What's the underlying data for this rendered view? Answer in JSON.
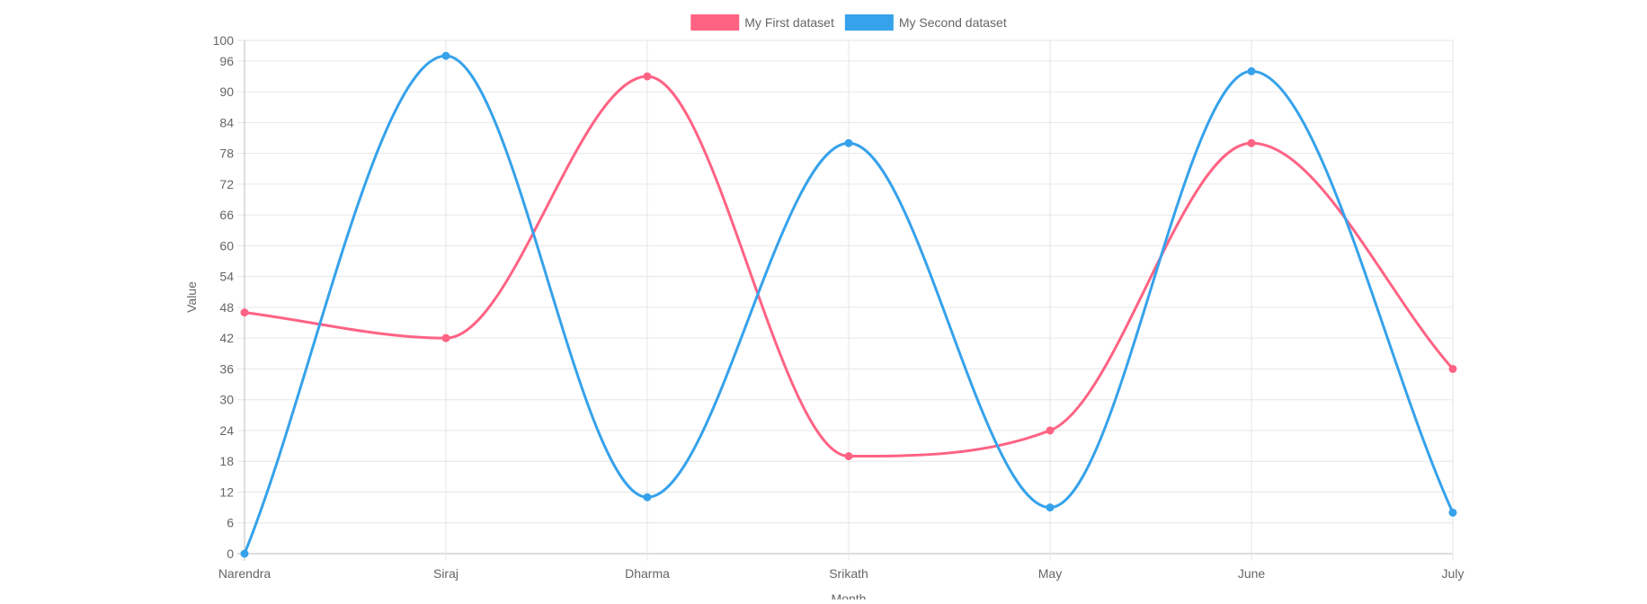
{
  "chart_data": {
    "type": "line",
    "categories": [
      "Narendra",
      "Siraj",
      "Dharma",
      "Srikath",
      "May",
      "June",
      "July"
    ],
    "series": [
      {
        "name": "My First dataset",
        "values": [
          47,
          42,
          93,
          19,
          24,
          80,
          36
        ],
        "color": "#ff6384"
      },
      {
        "name": "My Second dataset",
        "values": [
          0,
          97,
          11,
          80,
          9,
          94,
          8
        ],
        "color": "#36a2eb"
      }
    ],
    "xlabel": "Month",
    "ylabel": "Value",
    "ylim": [
      0,
      100
    ],
    "yticks": [
      0,
      6,
      12,
      18,
      24,
      30,
      36,
      42,
      48,
      54,
      60,
      66,
      72,
      78,
      84,
      90,
      96,
      100
    ],
    "grid": true,
    "legend": "top-center",
    "smooth": true
  }
}
